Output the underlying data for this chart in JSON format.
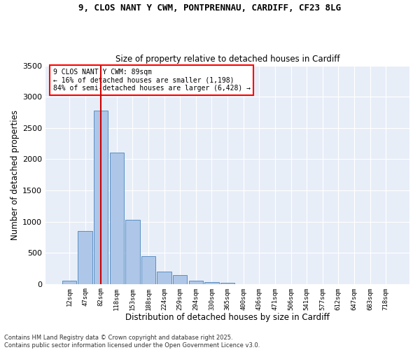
{
  "title_line1": "9, CLOS NANT Y CWM, PONTPRENNAU, CARDIFF, CF23 8LG",
  "title_line2": "Size of property relative to detached houses in Cardiff",
  "xlabel": "Distribution of detached houses by size in Cardiff",
  "ylabel": "Number of detached properties",
  "categories": [
    "12sqm",
    "47sqm",
    "82sqm",
    "118sqm",
    "153sqm",
    "188sqm",
    "224sqm",
    "259sqm",
    "294sqm",
    "330sqm",
    "365sqm",
    "400sqm",
    "436sqm",
    "471sqm",
    "506sqm",
    "541sqm",
    "577sqm",
    "612sqm",
    "647sqm",
    "683sqm",
    "718sqm"
  ],
  "values": [
    55,
    850,
    2780,
    2110,
    1030,
    450,
    200,
    145,
    55,
    35,
    20,
    0,
    0,
    0,
    0,
    0,
    0,
    0,
    0,
    0,
    0
  ],
  "bar_color": "#aec6e8",
  "bar_edge_color": "#5a8fc2",
  "vline_x": 2,
  "vline_color": "#cc0000",
  "annotation_line1": "9 CLOS NANT Y CWM: 89sqm",
  "annotation_line2": "← 16% of detached houses are smaller (1,198)",
  "annotation_line3": "84% of semi-detached houses are larger (6,428) →",
  "ylim": [
    0,
    3500
  ],
  "yticks": [
    0,
    500,
    1000,
    1500,
    2000,
    2500,
    3000,
    3500
  ],
  "footer_line1": "Contains HM Land Registry data © Crown copyright and database right 2025.",
  "footer_line2": "Contains public sector information licensed under the Open Government Licence v3.0.",
  "bg_color": "#e8eef8",
  "fig_bg_color": "#ffffff"
}
